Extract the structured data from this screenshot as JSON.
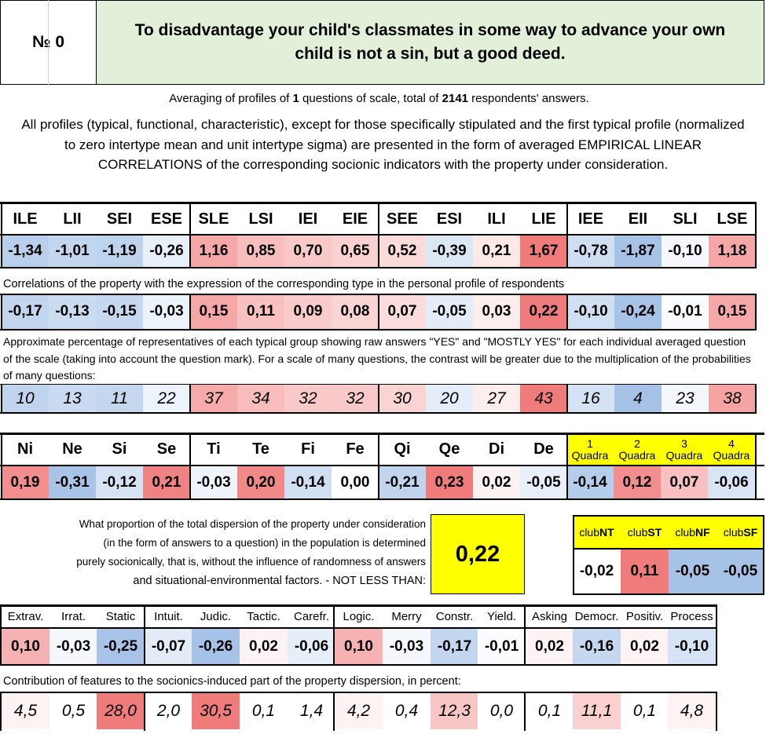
{
  "header": {
    "number_label": "№",
    "number": "0",
    "title": "To disadvantage your child's classmates in some way to advance your own child is not a sin, but a good deed."
  },
  "averaging": {
    "pre": "Averaging of profiles of ",
    "questions": "1",
    "mid": " questions of scale, total of ",
    "respondents": "2141",
    "post": " respondents' answers."
  },
  "intro": "All profiles (typical, functional, characteristic), except for those specifically stipulated and the first typical profile (normalized to zero intertype mean and unit intertype sigma) are presented in the form of averaged EMPIRICAL LINEAR CORRELATIONS of the corresponding socionic indicators with the property under consideration.",
  "types": {
    "labels": [
      "ILE",
      "LII",
      "SEI",
      "ESE",
      "SLE",
      "LSI",
      "IEI",
      "EIE",
      "SEE",
      "ESI",
      "ILI",
      "LIE",
      "IEE",
      "EII",
      "SLI",
      "LSE"
    ],
    "profile": [
      "-1,34",
      "-1,01",
      "-1,19",
      "-0,26",
      "1,16",
      "0,85",
      "0,70",
      "0,65",
      "0,52",
      "-0,39",
      "0,21",
      "1,67",
      "-0,78",
      "-1,87",
      "-0,10",
      "1,18"
    ],
    "profile_colors": [
      "#b9cfeb",
      "#c3d6ef",
      "#bed3ed",
      "#e8eff9",
      "#f6a7a7",
      "#f8bdbd",
      "#f9c8c8",
      "#fad0d0",
      "#fbdada",
      "#dce7f4",
      "#fde8e8",
      "#ef7b7b",
      "#d0def1",
      "#a6c2e6",
      "#f4f8fc",
      "#f6a6a6"
    ],
    "corr_note": "Correlations of the property with the expression of the corresponding type in the personal profile of respondents",
    "corr": [
      "-0,17",
      "-0,13",
      "-0,15",
      "-0,03",
      "0,15",
      "0,11",
      "0,09",
      "0,08",
      "0,07",
      "-0,05",
      "0,03",
      "0,22",
      "-0,10",
      "-0,24",
      "-0,01",
      "0,15"
    ],
    "corr_colors": [
      "#c1d5ee",
      "#cbdcf1",
      "#c6d8ef",
      "#edf3fa",
      "#f6a8a8",
      "#f8c0c0",
      "#f9cbcb",
      "#fad3d3",
      "#fbdcdc",
      "#e3ecf7",
      "#fdeeee",
      "#ef7c7c",
      "#d0dff2",
      "#a7c3e7",
      "#fafcfe",
      "#f6a8a8"
    ],
    "pct_note": "Approximate percentage of representatives of each typical group showing raw answers \"YES\" and \"MOSTLY YES\" for each individual averaged question of the scale (taking into account the question mark). For a scale of many questions, the contrast will be greater due to the multiplication of the probabilities of many questions:",
    "pct": [
      "10",
      "13",
      "11",
      "22",
      "37",
      "34",
      "32",
      "32",
      "30",
      "20",
      "27",
      "43",
      "16",
      "4",
      "23",
      "38"
    ],
    "pct_colors": [
      "#c0d4ee",
      "#cadbf1",
      "#c4d7ef",
      "#edf3fa",
      "#f6aaaa",
      "#f8bcbc",
      "#f9c8c8",
      "#f9c8c8",
      "#fad3d3",
      "#e5edf8",
      "#fdeeee",
      "#ef7b7b",
      "#d5e2f3",
      "#a6c2e6",
      "#f4f8fc",
      "#f5a3a3"
    ]
  },
  "functions": {
    "labels": [
      "Ni",
      "Ne",
      "Si",
      "Se",
      "Ti",
      "Te",
      "Fi",
      "Fe",
      "Qi",
      "Qe",
      "Di",
      "De"
    ],
    "values": [
      "0,19",
      "-0,31",
      "-0,12",
      "0,21",
      "-0,03",
      "0,20",
      "-0,14",
      "0,00",
      "-0,21",
      "0,23",
      "0,02",
      "-0,05"
    ],
    "colors": [
      "#f28e8e",
      "#a9c4e7",
      "#d6e3f4",
      "#ef8282",
      "#eef4fa",
      "#f18989",
      "#d1dff2",
      "#ffffff",
      "#c0d4ee",
      "#ef7b7b",
      "#fdf2f2",
      "#e8eff9"
    ]
  },
  "quadras": {
    "labels": [
      [
        "1",
        "Quadra"
      ],
      [
        "2",
        "Quadra"
      ],
      [
        "3",
        "Quadra"
      ],
      [
        "4",
        "Quadra"
      ]
    ],
    "values": [
      "-0,14",
      "0,12",
      "0,07",
      "-0,06"
    ],
    "colors": [
      "#b3cdeb",
      "#f28e8e",
      "#f8c0c0",
      "#d9e5f4"
    ],
    "header_bg": "#ffff00"
  },
  "dispersion": {
    "text": [
      "What proportion of the total dispersion of the property under consideration",
      "(in the form of answers to a question) in the population is determined",
      "purely socionically, that is, without the influence of randomness of answers",
      "and situational-environmental factors. - NOT LESS THAN:"
    ],
    "value": "0,22",
    "bg": "#ffff00"
  },
  "clubs": {
    "labels": [
      [
        "club",
        "NT"
      ],
      [
        "club",
        "ST"
      ],
      [
        "club",
        "NF"
      ],
      [
        "club",
        "SF"
      ]
    ],
    "values": [
      "-0,02",
      "0,11",
      "-0,05",
      "-0,05"
    ],
    "colors": [
      "#ffffff",
      "#ef7b7b",
      "#a6c2e6",
      "#a6c2e6"
    ]
  },
  "features": {
    "labels": [
      "Extrav.",
      "Irrat.",
      "Static",
      "Intuit.",
      "Judic.",
      "Tactic.",
      "Carefr.",
      "Logic.",
      "Merry",
      "Constr.",
      "Yield.",
      "Asking",
      "Democr.",
      "Positiv.",
      "Process"
    ],
    "values": [
      "0,10",
      "-0,03",
      "-0,25",
      "-0,07",
      "-0,26",
      "0,02",
      "-0,06",
      "0,10",
      "-0,03",
      "-0,17",
      "-0,01",
      "0,02",
      "-0,16",
      "0,02",
      "-0,10"
    ],
    "colors": [
      "#f6b2b2",
      "#f4f8fc",
      "#a8c3e7",
      "#e2ebf6",
      "#a6c2e6",
      "#fdf3f3",
      "#e6eef8",
      "#f6b2b2",
      "#f4f8fc",
      "#c3d6ef",
      "#fafcfe",
      "#fdf3f3",
      "#c6d8ef",
      "#fdf3f3",
      "#d6e3f4"
    ],
    "contrib_note": "Contribution of features to the socionics-induced part of the property dispersion, in percent:",
    "contrib": [
      "4,5",
      "0,5",
      "28,0",
      "2,0",
      "30,5",
      "0,1",
      "1,4",
      "4,2",
      "0,4",
      "12,3",
      "0,0",
      "0,1",
      "11,1",
      "0,1",
      "4,8"
    ],
    "contrib_colors": [
      "#fdf3f3",
      "#ffffff",
      "#ef7b7b",
      "#ffffff",
      "#ef7b7b",
      "#ffffff",
      "#ffffff",
      "#fdf3f3",
      "#ffffff",
      "#f9c6c6",
      "#ffffff",
      "#ffffff",
      "#fad0d0",
      "#ffffff",
      "#fdf3f3"
    ]
  }
}
